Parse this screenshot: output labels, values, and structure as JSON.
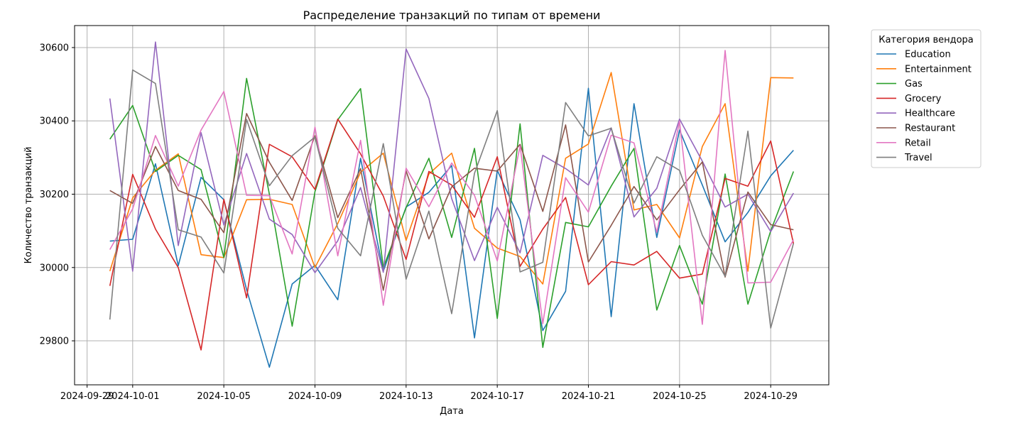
{
  "chart_data": {
    "type": "line",
    "title": "Распределение транзакций по типам от времени",
    "xlabel": "Дата",
    "ylabel": "Количество транзакций",
    "ylim": [
      29680,
      30660
    ],
    "xlim": [
      "2024-09-29",
      "2024-10-30"
    ],
    "grid": true,
    "legend_title": "Категория вендора",
    "legend_position": "outside-top-right",
    "x_ticks": [
      "2024-09-29",
      "2024-10-01",
      "2024-10-05",
      "2024-10-09",
      "2024-10-13",
      "2024-10-17",
      "2024-10-21",
      "2024-10-25",
      "2024-10-29"
    ],
    "y_ticks": [
      29800,
      30000,
      30200,
      30400,
      30600
    ],
    "x": [
      "2024-09-30",
      "2024-10-01",
      "2024-10-02",
      "2024-10-03",
      "2024-10-04",
      "2024-10-05",
      "2024-10-06",
      "2024-10-07",
      "2024-10-08",
      "2024-10-09",
      "2024-10-10",
      "2024-10-11",
      "2024-10-12",
      "2024-10-13",
      "2024-10-14",
      "2024-10-15",
      "2024-10-16",
      "2024-10-17",
      "2024-10-18",
      "2024-10-19",
      "2024-10-20",
      "2024-10-21",
      "2024-10-22",
      "2024-10-23",
      "2024-10-24",
      "2024-10-25",
      "2024-10-26",
      "2024-10-27",
      "2024-10-28",
      "2024-10-29",
      "2024-10-30"
    ],
    "series": [
      {
        "name": "Education",
        "color": "#1f77b4",
        "values": [
          30072,
          30077,
          30283,
          30005,
          30246,
          30185,
          29940,
          29728,
          29955,
          30006,
          29912,
          30298,
          29990,
          30165,
          30205,
          30278,
          29808,
          30265,
          30130,
          29828,
          29935,
          30489,
          29866,
          30447,
          30082,
          30375,
          30225,
          30070,
          30150,
          30250,
          30320
        ]
      },
      {
        "name": "Entertainment",
        "color": "#ff7f0e",
        "values": [
          29990,
          30190,
          30265,
          30310,
          30035,
          30027,
          30185,
          30186,
          30172,
          30000,
          30120,
          30260,
          30312,
          30074,
          30255,
          30312,
          30107,
          30053,
          30030,
          29955,
          30298,
          30337,
          30532,
          30157,
          30172,
          30081,
          30330,
          30447,
          29990,
          30518,
          30517
        ]
      },
      {
        "name": "Gas",
        "color": "#2ca02c",
        "values": [
          30350,
          30442,
          30262,
          30306,
          30267,
          30027,
          30516,
          30200,
          29840,
          30207,
          30403,
          30488,
          30000,
          30163,
          30298,
          30082,
          30325,
          29861,
          30392,
          29782,
          30123,
          30111,
          30222,
          30325,
          29884,
          30060,
          29900,
          30255,
          29900,
          30100,
          30262
        ]
      },
      {
        "name": "Grocery",
        "color": "#d62728",
        "values": [
          29950,
          30254,
          30105,
          30000,
          29775,
          30186,
          29917,
          30336,
          30302,
          30213,
          30405,
          30310,
          30195,
          30022,
          30262,
          30225,
          30137,
          30302,
          30003,
          30105,
          30191,
          29953,
          30016,
          30007,
          30044,
          29971,
          29982,
          30243,
          30222,
          30345,
          30065
        ]
      },
      {
        "name": "Healthcare",
        "color": "#9467bd",
        "values": [
          30461,
          29990,
          30615,
          30060,
          30368,
          30116,
          30311,
          30132,
          30090,
          29986,
          30073,
          30218,
          29987,
          30596,
          30461,
          30188,
          30019,
          30164,
          30040,
          30306,
          30270,
          30225,
          30381,
          30138,
          30216,
          30405,
          30290,
          30165,
          30200,
          30098,
          30203
        ]
      },
      {
        "name": "Restaurant",
        "color": "#8c564b",
        "values": [
          30210,
          30175,
          30330,
          30210,
          30186,
          30095,
          30420,
          30287,
          30183,
          30360,
          30136,
          30270,
          29938,
          30264,
          30078,
          30220,
          30271,
          30263,
          30336,
          30153,
          30389,
          30015,
          30115,
          30221,
          30130,
          30212,
          30288,
          29974,
          30206,
          30117,
          30103
        ]
      },
      {
        "name": "Retail",
        "color": "#e377c2",
        "values": [
          30049,
          30160,
          30360,
          30222,
          30375,
          30480,
          30197,
          30196,
          30037,
          30383,
          30032,
          30347,
          29897,
          30271,
          30166,
          30285,
          30197,
          30018,
          30332,
          29847,
          30245,
          30151,
          30361,
          30340,
          30096,
          30399,
          29845,
          30592,
          29958,
          29960,
          30076
        ]
      },
      {
        "name": "Travel",
        "color": "#7f7f7f",
        "values": [
          29858,
          30539,
          30502,
          30103,
          30083,
          29985,
          30404,
          30223,
          30305,
          30356,
          30107,
          30032,
          30338,
          29968,
          30154,
          29874,
          30257,
          30428,
          29988,
          30014,
          30450,
          30359,
          30380,
          30176,
          30302,
          30265,
          30088,
          29976,
          30372,
          29835,
          30066
        ]
      }
    ]
  }
}
